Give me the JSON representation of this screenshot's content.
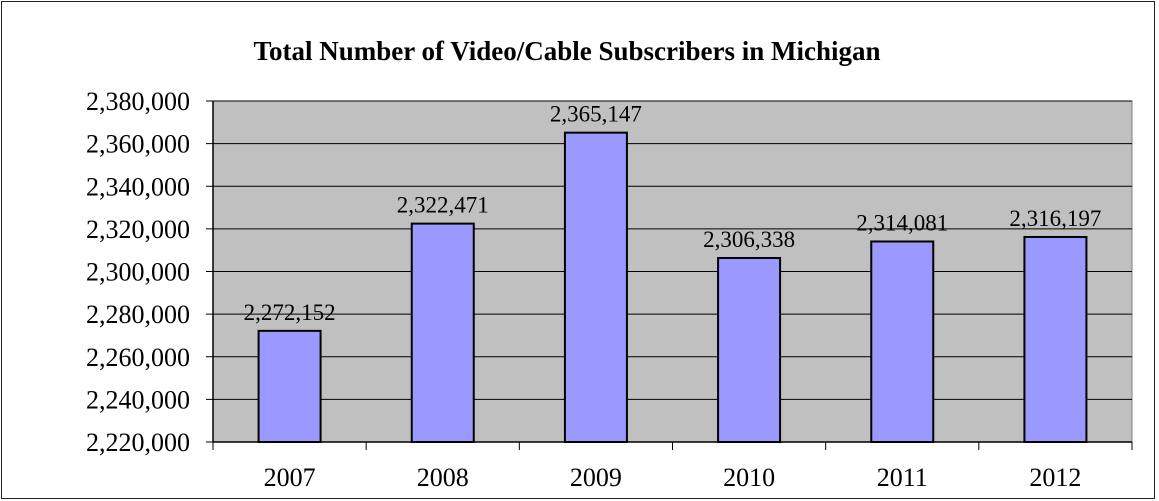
{
  "chart_data": {
    "type": "bar",
    "title": "Total Number of Video/Cable Subscribers in Michigan",
    "xlabel": "",
    "ylabel": "",
    "categories": [
      "2007",
      "2008",
      "2009",
      "2010",
      "2011",
      "2012"
    ],
    "values": [
      2272152,
      2322471,
      2365147,
      2306338,
      2314081,
      2316197
    ],
    "value_labels": [
      "2,272,152",
      "2,322,471",
      "2,365,147",
      "2,306,338",
      "2,314,081",
      "2,316,197"
    ],
    "ylim": [
      2220000,
      2380000
    ],
    "yticks": [
      2220000,
      2240000,
      2260000,
      2280000,
      2300000,
      2320000,
      2340000,
      2360000,
      2380000
    ],
    "ytick_labels": [
      "2,220,000",
      "2,240,000",
      "2,260,000",
      "2,280,000",
      "2,300,000",
      "2,320,000",
      "2,340,000",
      "2,360,000",
      "2,380,000"
    ],
    "grid": true,
    "legend": "none",
    "colors": {
      "bar": "#9999ff",
      "plot_background": "#c0c0c0",
      "gridline": "#000000",
      "outline": "#000000"
    }
  }
}
